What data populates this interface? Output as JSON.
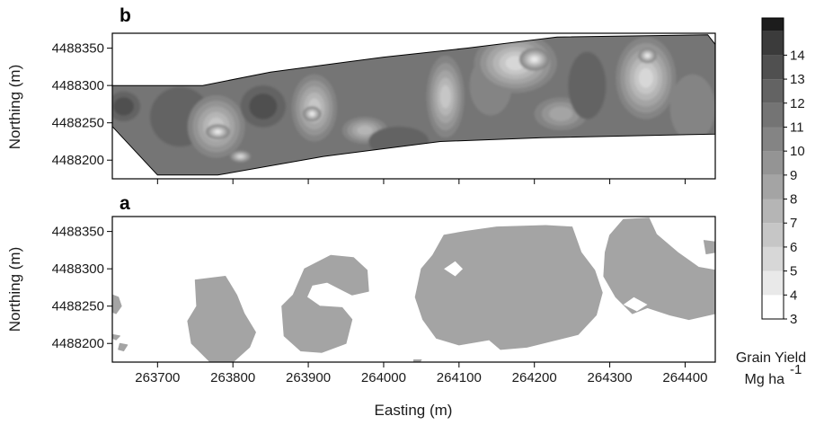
{
  "chart_data": [
    {
      "type": "heatmap",
      "panel": "b",
      "title": "",
      "xlabel": "",
      "ylabel": "Northing (m)",
      "xlim": [
        263640,
        264440
      ],
      "ylim": [
        4488175,
        4488370
      ],
      "x_ticks": [
        263700,
        263800,
        263900,
        264000,
        264100,
        264200,
        264300,
        264400
      ],
      "y_ticks": [
        4488200,
        4488250,
        4488300,
        4488350
      ],
      "y_tick_labels": [
        "4488200",
        "4488250",
        "4488300",
        "4488350"
      ],
      "field_boundary": [
        [
          263640,
          4488300
        ],
        [
          263760,
          4488300
        ],
        [
          263850,
          4488318
        ],
        [
          264000,
          4488338
        ],
        [
          264110,
          4488350
        ],
        [
          264230,
          4488365
        ],
        [
          264430,
          4488368
        ],
        [
          264440,
          4488355
        ],
        [
          264440,
          4488235
        ],
        [
          264210,
          4488230
        ],
        [
          264075,
          4488225
        ],
        [
          263920,
          4488205
        ],
        [
          263780,
          4488180
        ],
        [
          263700,
          4488180
        ],
        [
          263640,
          4488245
        ]
      ],
      "yield_background_mg_ha": 11,
      "yield_hotspots": [
        {
          "x": 263655,
          "y": 4488272,
          "yield": 13,
          "rx": 22,
          "ry": 20
        },
        {
          "x": 263730,
          "y": 4488258,
          "yield": 12,
          "rx": 40,
          "ry": 40
        },
        {
          "x": 263778,
          "y": 4488245,
          "yield": 6,
          "rx": 38,
          "ry": 42
        },
        {
          "x": 263780,
          "y": 4488238,
          "yield": 4,
          "rx": 16,
          "ry": 10
        },
        {
          "x": 263810,
          "y": 4488205,
          "yield": 5,
          "rx": 14,
          "ry": 8
        },
        {
          "x": 263840,
          "y": 4488272,
          "yield": 13,
          "rx": 30,
          "ry": 28
        },
        {
          "x": 263908,
          "y": 4488270,
          "yield": 6,
          "rx": 30,
          "ry": 45
        },
        {
          "x": 263905,
          "y": 4488262,
          "yield": 4,
          "rx": 12,
          "ry": 10
        },
        {
          "x": 263975,
          "y": 4488240,
          "yield": 7,
          "rx": 30,
          "ry": 18
        },
        {
          "x": 264020,
          "y": 4488225,
          "yield": 12,
          "rx": 40,
          "ry": 20
        },
        {
          "x": 264082,
          "y": 4488285,
          "yield": 6,
          "rx": 25,
          "ry": 55
        },
        {
          "x": 264142,
          "y": 4488300,
          "yield": 10,
          "rx": 28,
          "ry": 40
        },
        {
          "x": 264175,
          "y": 4488330,
          "yield": 5,
          "rx": 55,
          "ry": 40
        },
        {
          "x": 264200,
          "y": 4488335,
          "yield": 4,
          "rx": 20,
          "ry": 15
        },
        {
          "x": 264235,
          "y": 4488262,
          "yield": 8,
          "rx": 35,
          "ry": 22
        },
        {
          "x": 264270,
          "y": 4488300,
          "yield": 12,
          "rx": 25,
          "ry": 45
        },
        {
          "x": 264348,
          "y": 4488310,
          "yield": 5,
          "rx": 40,
          "ry": 55
        },
        {
          "x": 264350,
          "y": 4488340,
          "yield": 4,
          "rx": 12,
          "ry": 10
        },
        {
          "x": 264410,
          "y": 4488270,
          "yield": 10,
          "rx": 30,
          "ry": 45
        }
      ]
    },
    {
      "type": "heatmap",
      "panel": "a",
      "title": "",
      "xlabel": "Easting (m)",
      "ylabel": "Northing (m)",
      "xlim": [
        263640,
        264440
      ],
      "ylim": [
        4488175,
        4488370
      ],
      "x_ticks": [
        263700,
        263800,
        263900,
        264000,
        264100,
        264200,
        264300,
        264400
      ],
      "x_tick_labels": [
        "263700",
        "263800",
        "263900",
        "264000",
        "264100",
        "264200",
        "264300",
        "264400"
      ],
      "y_ticks": [
        4488200,
        4488250,
        4488300,
        4488350
      ],
      "y_tick_labels": [
        "4488200",
        "4488250",
        "4488300",
        "4488350"
      ],
      "zone_fill_yield_mg_ha": 8,
      "zones": [
        [
          [
            263640,
            4488265
          ],
          [
            263648,
            4488262
          ],
          [
            263652,
            4488250
          ],
          [
            263645,
            4488240
          ],
          [
            263640,
            4488242
          ]
        ],
        [
          [
            263640,
            4488212
          ],
          [
            263650,
            4488210
          ],
          [
            263645,
            4488205
          ],
          [
            263640,
            4488207
          ]
        ],
        [
          [
            263650,
            4488200
          ],
          [
            263660,
            4488198
          ],
          [
            263655,
            4488190
          ],
          [
            263648,
            4488192
          ]
        ],
        [
          [
            263750,
            4488285
          ],
          [
            263790,
            4488290
          ],
          [
            263805,
            4488265
          ],
          [
            263815,
            4488240
          ],
          [
            263830,
            4488215
          ],
          [
            263822,
            4488195
          ],
          [
            263800,
            4488175
          ],
          [
            263770,
            4488175
          ],
          [
            263745,
            4488200
          ],
          [
            263740,
            4488230
          ],
          [
            263752,
            4488250
          ]
        ],
        [
          [
            263865,
            4488250
          ],
          [
            263880,
            4488265
          ],
          [
            263895,
            4488300
          ],
          [
            263930,
            4488318
          ],
          [
            263960,
            4488315
          ],
          [
            263978,
            4488298
          ],
          [
            263980,
            4488270
          ],
          [
            263958,
            4488265
          ],
          [
            263925,
            4488282
          ],
          [
            263905,
            4488278
          ],
          [
            263898,
            4488262
          ],
          [
            263915,
            4488250
          ],
          [
            263945,
            4488248
          ],
          [
            263958,
            4488232
          ],
          [
            263950,
            4488200
          ],
          [
            263918,
            4488188
          ],
          [
            263890,
            4488190
          ],
          [
            263868,
            4488210
          ]
        ],
        [
          [
            264050,
            4488300
          ],
          [
            264065,
            4488318
          ],
          [
            264080,
            4488345
          ],
          [
            264108,
            4488350
          ],
          [
            264150,
            4488356
          ],
          [
            264215,
            4488358
          ],
          [
            264250,
            4488356
          ],
          [
            264262,
            4488322
          ],
          [
            264280,
            4488298
          ],
          [
            264290,
            4488268
          ],
          [
            264282,
            4488238
          ],
          [
            264258,
            4488212
          ],
          [
            264190,
            4488195
          ],
          [
            264155,
            4488192
          ],
          [
            264140,
            4488205
          ],
          [
            264100,
            4488198
          ],
          [
            264070,
            4488207
          ],
          [
            264052,
            4488232
          ],
          [
            264042,
            4488262
          ]
        ],
        [
          [
            264300,
            4488345
          ],
          [
            264318,
            4488366
          ],
          [
            264352,
            4488368
          ],
          [
            264362,
            4488346
          ],
          [
            264390,
            4488322
          ],
          [
            264418,
            4488302
          ],
          [
            264440,
            4488298
          ],
          [
            264440,
            4488240
          ],
          [
            264405,
            4488232
          ],
          [
            264380,
            4488238
          ],
          [
            264350,
            4488248
          ],
          [
            264330,
            4488240
          ],
          [
            264308,
            4488262
          ],
          [
            264292,
            4488290
          ],
          [
            264294,
            4488322
          ]
        ],
        [
          [
            264425,
            4488338
          ],
          [
            264440,
            4488336
          ],
          [
            264440,
            4488322
          ],
          [
            264428,
            4488320
          ]
        ],
        [
          [
            264040,
            4488178
          ],
          [
            264050,
            4488178
          ],
          [
            264048,
            4488175
          ],
          [
            264040,
            4488175
          ]
        ]
      ],
      "zone_holes": [
        [
          [
            264080,
            4488300
          ],
          [
            264095,
            4488310
          ],
          [
            264105,
            4488300
          ],
          [
            264095,
            4488290
          ]
        ],
        [
          [
            264318,
            4488252
          ],
          [
            264332,
            4488262
          ],
          [
            264350,
            4488252
          ],
          [
            264336,
            4488243
          ]
        ]
      ]
    }
  ],
  "colorbar": {
    "title": "Grain Yield",
    "unit_base": "Mg ha",
    "unit_exponent": "-1",
    "levels": [
      3,
      4,
      5,
      6,
      7,
      8,
      9,
      10,
      11,
      12,
      13,
      14,
      15
    ],
    "tick_labels": [
      "3",
      "4",
      "5",
      "6",
      "7",
      "8",
      "9",
      "10",
      "11",
      "12",
      "13",
      "14"
    ],
    "colors": [
      "#ffffff",
      "#e9e9e9",
      "#d7d7d7",
      "#c6c6c6",
      "#b5b5b5",
      "#a4a4a4",
      "#949494",
      "#848484",
      "#747474",
      "#636363",
      "#505050",
      "#3b3b3b",
      "#1c1c1c"
    ]
  }
}
